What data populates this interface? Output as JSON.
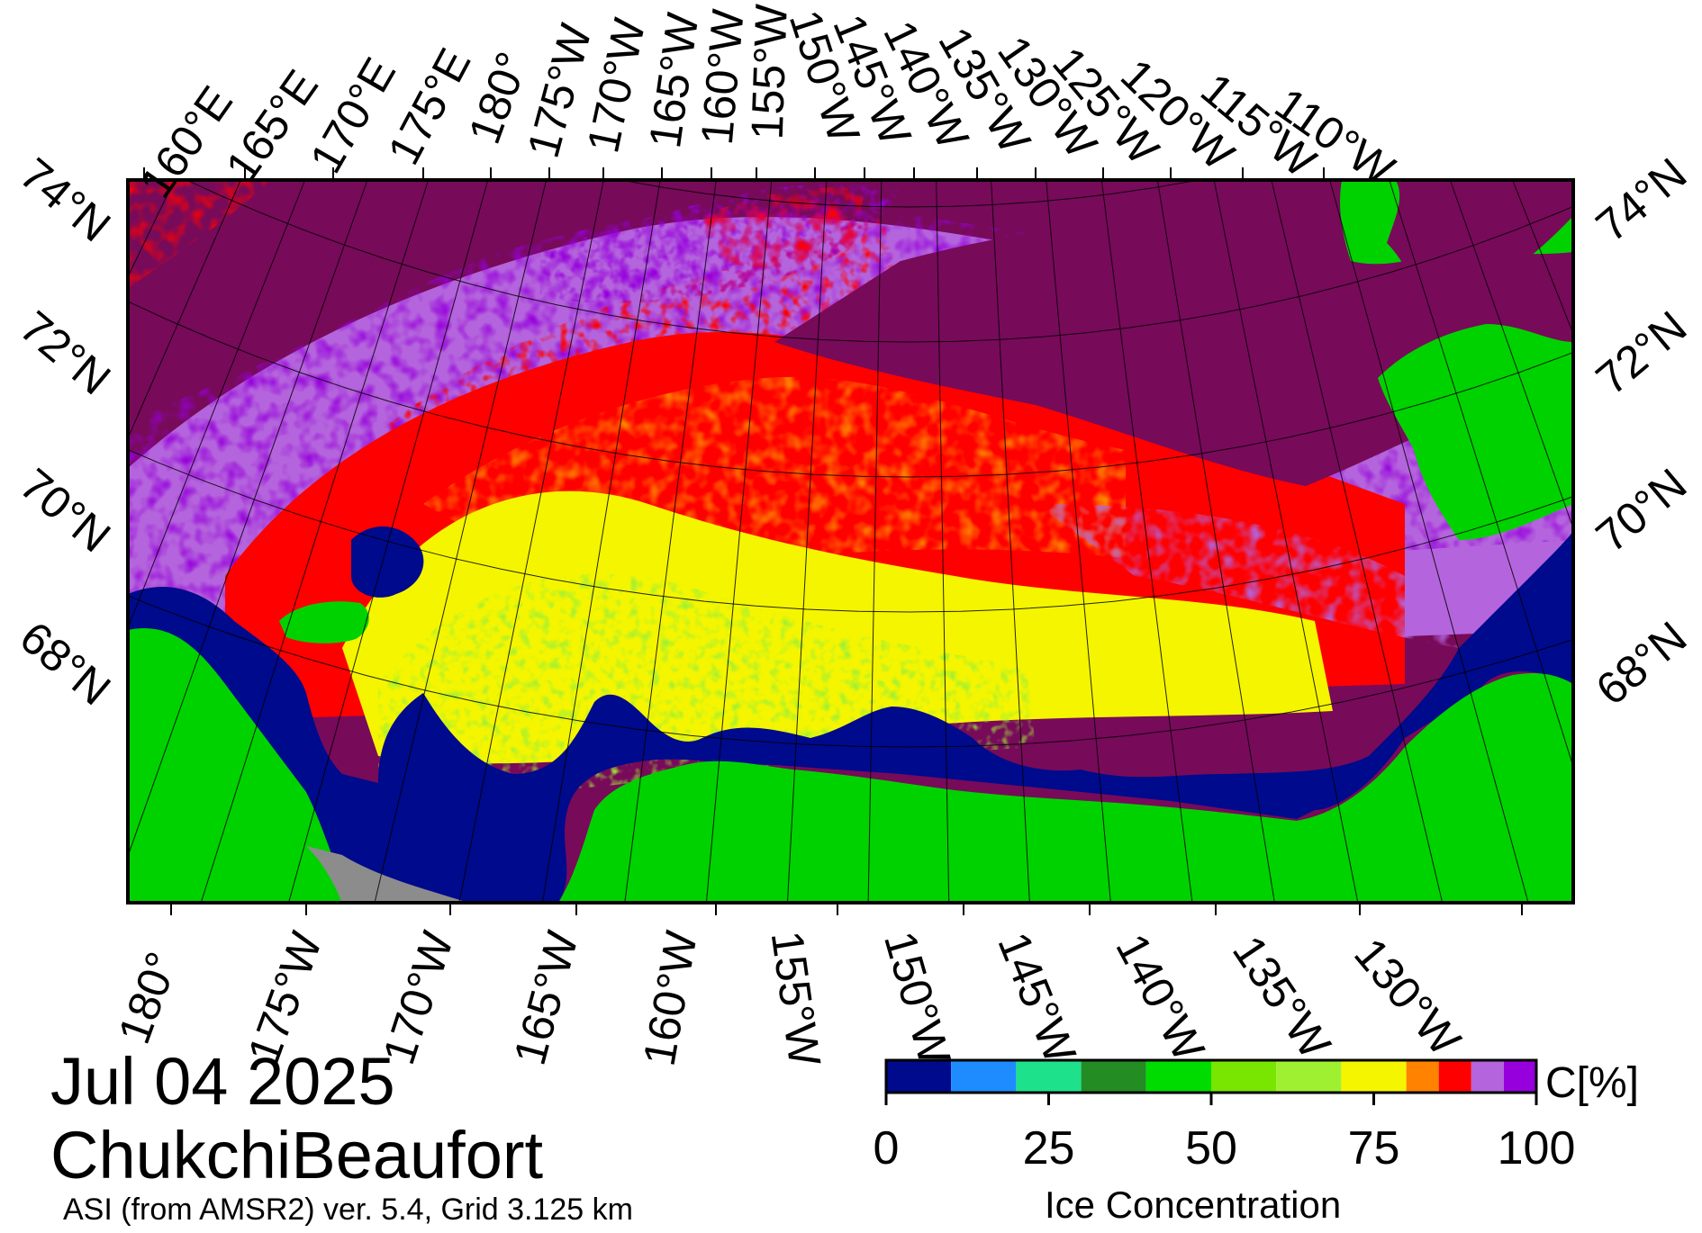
{
  "title": {
    "date": "Jul 04 2025",
    "region": "ChukchiBeaufort",
    "product": "ASI (from AMSR2) ver. 5.4,  Grid 3.125 km"
  },
  "colorbar": {
    "title": "Ice Concentration",
    "unit": "C[%]",
    "tick_labels": [
      "0",
      "25",
      "50",
      "75",
      "100"
    ],
    "ticks": [
      0,
      25,
      50,
      75,
      100
    ],
    "bins": [
      {
        "from": 0,
        "to": 10,
        "color": "#000a8c"
      },
      {
        "from": 10,
        "to": 20,
        "color": "#1e8cff"
      },
      {
        "from": 20,
        "to": 30,
        "color": "#1ee18c"
      },
      {
        "from": 30,
        "to": 40,
        "color": "#238c23"
      },
      {
        "from": 40,
        "to": 50,
        "color": "#00dc00"
      },
      {
        "from": 50,
        "to": 60,
        "color": "#78e600"
      },
      {
        "from": 60,
        "to": 70,
        "color": "#a0f032"
      },
      {
        "from": 70,
        "to": 80,
        "color": "#f5f500"
      },
      {
        "from": 80,
        "to": 85,
        "color": "#ff8200"
      },
      {
        "from": 85,
        "to": 90,
        "color": "#ff0000"
      },
      {
        "from": 90,
        "to": 95,
        "color": "#b464dc"
      },
      {
        "from": 95,
        "to": 100,
        "color": "#9600dc"
      }
    ]
  },
  "map": {
    "land_color": "#00d200",
    "open_water_color": "#000a8c",
    "no_data_color": "#8c8c8c",
    "pack_ice_color": "#780a5a",
    "top_labels": [
      "160°E",
      "165°E",
      "170°E",
      "175°E",
      "180°",
      "175°W",
      "170°W",
      "165°W",
      "160°W",
      "155°W",
      "150°W",
      "145°W",
      "140°W",
      "135°W",
      "130°W",
      "125°W",
      "120°W",
      "115°W",
      "110°W"
    ],
    "bottom_labels": [
      "180°",
      "175°W",
      "170°W",
      "165°W",
      "160°W",
      "155°W",
      "150°W",
      "145°W",
      "140°W",
      "135°W",
      "130°W"
    ],
    "left_labels": [
      "74°N",
      "72°N",
      "70°N",
      "68°N"
    ],
    "right_labels": [
      "74°N",
      "72°N",
      "70°N",
      "68°N"
    ]
  }
}
